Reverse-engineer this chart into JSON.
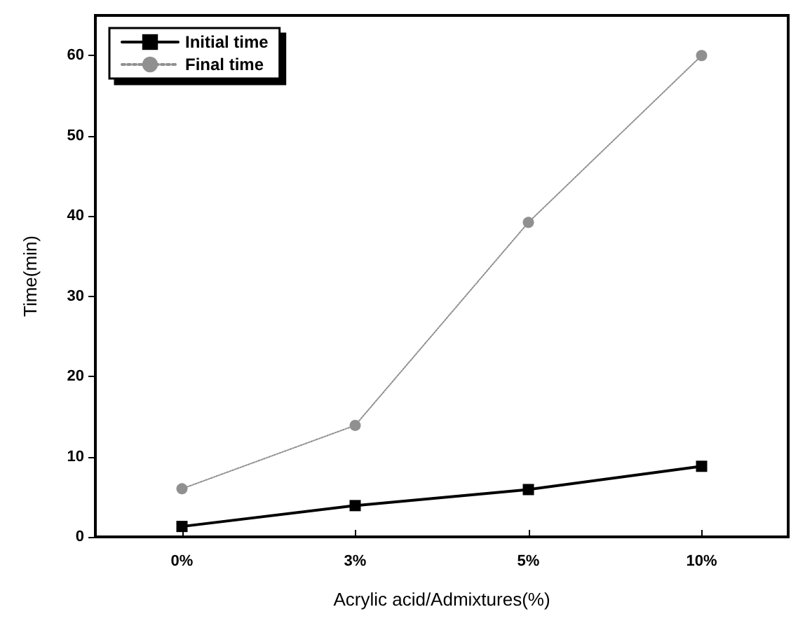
{
  "chart_data": {
    "type": "line",
    "xlabel": "Acrylic acid/Admixtures(%)",
    "ylabel": "Time(min)",
    "categories": [
      "0%",
      "3%",
      "5%",
      "10%"
    ],
    "series": [
      {
        "name": "Initial time",
        "color": "#000000",
        "values": [
          1.3,
          3.9,
          5.9,
          8.8
        ],
        "marker": "square",
        "line_style": "solid"
      },
      {
        "name": "Final time",
        "color": "#909090",
        "values": [
          6,
          13.9,
          39.2,
          60
        ],
        "marker": "circle",
        "line_style": "dotted"
      }
    ],
    "ylim": [
      0,
      65
    ],
    "yticks": [
      0,
      10,
      20,
      30,
      40,
      50,
      60
    ],
    "grid": false,
    "legend": "top left"
  }
}
